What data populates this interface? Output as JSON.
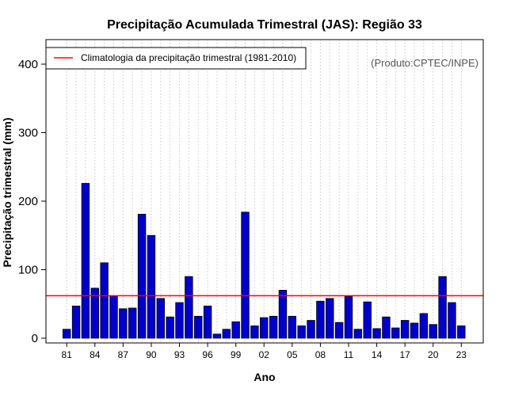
{
  "chart_data": {
    "type": "bar",
    "title": "Precipitação Acumulada Trimestral (JAS): Região 33",
    "xlabel": "Ano",
    "ylabel": "Precipitação trimestral (mm)",
    "ylim": [
      0,
      400
    ],
    "yticks": [
      0,
      100,
      200,
      300,
      400
    ],
    "grid": "vertical dotted lines at each year",
    "credit": "(Produto:CPTEC/INPE)",
    "legend": {
      "position": "top-left",
      "entries": [
        {
          "label": "Climatologia da precipitação trimestral (1981-2010)",
          "color": "#ff0000"
        }
      ]
    },
    "climatology": 62,
    "categories": [
      "1981",
      "1982",
      "1983",
      "1984",
      "1985",
      "1986",
      "1987",
      "1988",
      "1989",
      "1990",
      "1991",
      "1992",
      "1993",
      "1994",
      "1995",
      "1996",
      "1997",
      "1998",
      "1999",
      "2000",
      "2001",
      "2002",
      "2003",
      "2004",
      "2005",
      "2006",
      "2007",
      "2008",
      "2009",
      "2010",
      "2011",
      "2012",
      "2013",
      "2014",
      "2015",
      "2016",
      "2017",
      "2018",
      "2019",
      "2020",
      "2021",
      "2022",
      "2023"
    ],
    "xtick_labels": [
      {
        "year": "1981",
        "label": "81"
      },
      {
        "year": "1984",
        "label": "84"
      },
      {
        "year": "1987",
        "label": "87"
      },
      {
        "year": "1990",
        "label": "90"
      },
      {
        "year": "1993",
        "label": "93"
      },
      {
        "year": "1996",
        "label": "96"
      },
      {
        "year": "1999",
        "label": "99"
      },
      {
        "year": "2002",
        "label": "02"
      },
      {
        "year": "2005",
        "label": "05"
      },
      {
        "year": "2008",
        "label": "08"
      },
      {
        "year": "2011",
        "label": "11"
      },
      {
        "year": "2014",
        "label": "14"
      },
      {
        "year": "2017",
        "label": "17"
      },
      {
        "year": "2020",
        "label": "20"
      },
      {
        "year": "2023",
        "label": "23"
      }
    ],
    "series": [
      {
        "name": "Precipitação trimestral",
        "color": "#0000cd",
        "values": [
          13,
          47,
          226,
          73,
          110,
          62,
          43,
          44,
          181,
          150,
          58,
          31,
          52,
          90,
          32,
          47,
          6,
          13,
          24,
          184,
          18,
          30,
          32,
          70,
          32,
          18,
          26,
          54,
          58,
          23,
          61,
          13,
          53,
          14,
          31,
          15,
          26,
          22,
          36,
          20,
          90,
          52,
          18
        ]
      }
    ]
  }
}
